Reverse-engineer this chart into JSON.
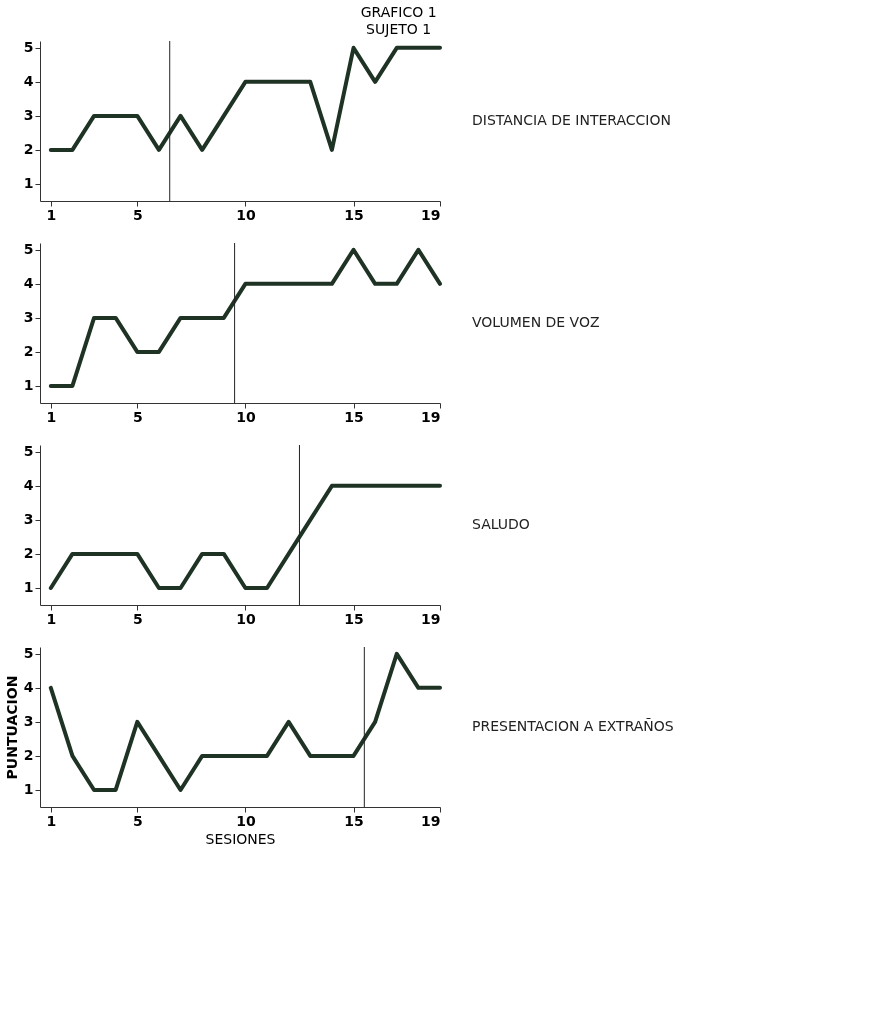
{
  "chart_data": [
    {
      "type": "line",
      "title": "GRAFICO 1",
      "subtitle": "SUJETO 1",
      "annotations": [
        "DISTANCIA DE INTERACCION"
      ],
      "x": [
        1,
        2,
        3,
        4,
        5,
        6,
        7,
        8,
        9,
        10,
        11,
        12,
        13,
        14,
        15,
        16,
        17,
        18,
        19
      ],
      "series": [
        {
          "color": "#1f3325",
          "values": [
            2,
            2,
            3,
            3,
            3,
            2,
            3,
            2,
            3,
            4,
            4,
            4,
            4,
            2,
            5,
            4,
            5,
            5,
            5
          ]
        }
      ],
      "xlim": [
        0.5,
        19
      ],
      "xticks": [
        1,
        5,
        10,
        15,
        19
      ],
      "ylim": [
        0.5,
        5.2
      ],
      "yticks": [
        1,
        2,
        3,
        4,
        5
      ],
      "marker": "none",
      "line_style": "solid",
      "grid": false,
      "ref_lines": [
        {
          "axis": "x",
          "value": 6.5,
          "color": "#222222"
        }
      ]
    },
    {
      "type": "line",
      "annotations": [
        "VOLUMEN DE VOZ"
      ],
      "x": [
        1,
        2,
        3,
        4,
        5,
        6,
        7,
        8,
        9,
        10,
        11,
        12,
        13,
        14,
        15,
        16,
        17,
        18,
        19
      ],
      "series": [
        {
          "color": "#1f3325",
          "values": [
            1,
            1,
            3,
            3,
            2,
            2,
            3,
            3,
            3,
            4,
            4,
            4,
            4,
            4,
            5,
            4,
            4,
            5,
            4
          ]
        }
      ],
      "xlim": [
        0.5,
        19
      ],
      "xticks": [
        1,
        5,
        10,
        15,
        19
      ],
      "ylim": [
        0.5,
        5.2
      ],
      "yticks": [
        1,
        2,
        3,
        4,
        5
      ],
      "marker": "none",
      "line_style": "solid",
      "grid": false,
      "ref_lines": [
        {
          "axis": "x",
          "value": 9.5,
          "color": "#222222"
        }
      ]
    },
    {
      "type": "line",
      "annotations": [
        "SALUDO"
      ],
      "x": [
        1,
        2,
        3,
        4,
        5,
        6,
        7,
        8,
        9,
        10,
        11,
        12,
        13,
        14,
        15,
        16,
        17,
        18,
        19
      ],
      "series": [
        {
          "color": "#1f3325",
          "values": [
            1,
            2,
            2,
            2,
            2,
            1,
            1,
            2,
            2,
            1,
            1,
            2,
            3,
            4,
            4,
            4,
            4,
            4,
            4
          ]
        }
      ],
      "xlim": [
        0.5,
        19
      ],
      "xticks": [
        1,
        5,
        10,
        15,
        19
      ],
      "ylim": [
        0.5,
        5.2
      ],
      "yticks": [
        1,
        2,
        3,
        4,
        5
      ],
      "marker": "none",
      "line_style": "solid",
      "grid": false,
      "ref_lines": [
        {
          "axis": "x",
          "value": 12.5,
          "color": "#222222"
        }
      ]
    },
    {
      "type": "line",
      "annotations": [
        "PRESENTACION A EXTRAÑOS"
      ],
      "xlabel": "SESIONES",
      "ylabel": "PUNTUACION",
      "x": [
        1,
        2,
        3,
        4,
        5,
        6,
        7,
        8,
        9,
        10,
        11,
        12,
        13,
        14,
        15,
        16,
        17,
        18,
        19
      ],
      "series": [
        {
          "color": "#1f3325",
          "values": [
            4,
            2,
            1,
            1,
            3,
            2,
            1,
            2,
            2,
            2,
            2,
            3,
            2,
            2,
            2,
            3,
            5,
            4,
            4
          ]
        }
      ],
      "xlim": [
        0.5,
        19
      ],
      "xticks": [
        1,
        5,
        10,
        15,
        19
      ],
      "ylim": [
        0.5,
        5.2
      ],
      "yticks": [
        1,
        2,
        3,
        4,
        5
      ],
      "marker": "none",
      "line_style": "solid",
      "grid": false,
      "ref_lines": [
        {
          "axis": "x",
          "value": 15.5,
          "color": "#222222"
        }
      ]
    }
  ]
}
